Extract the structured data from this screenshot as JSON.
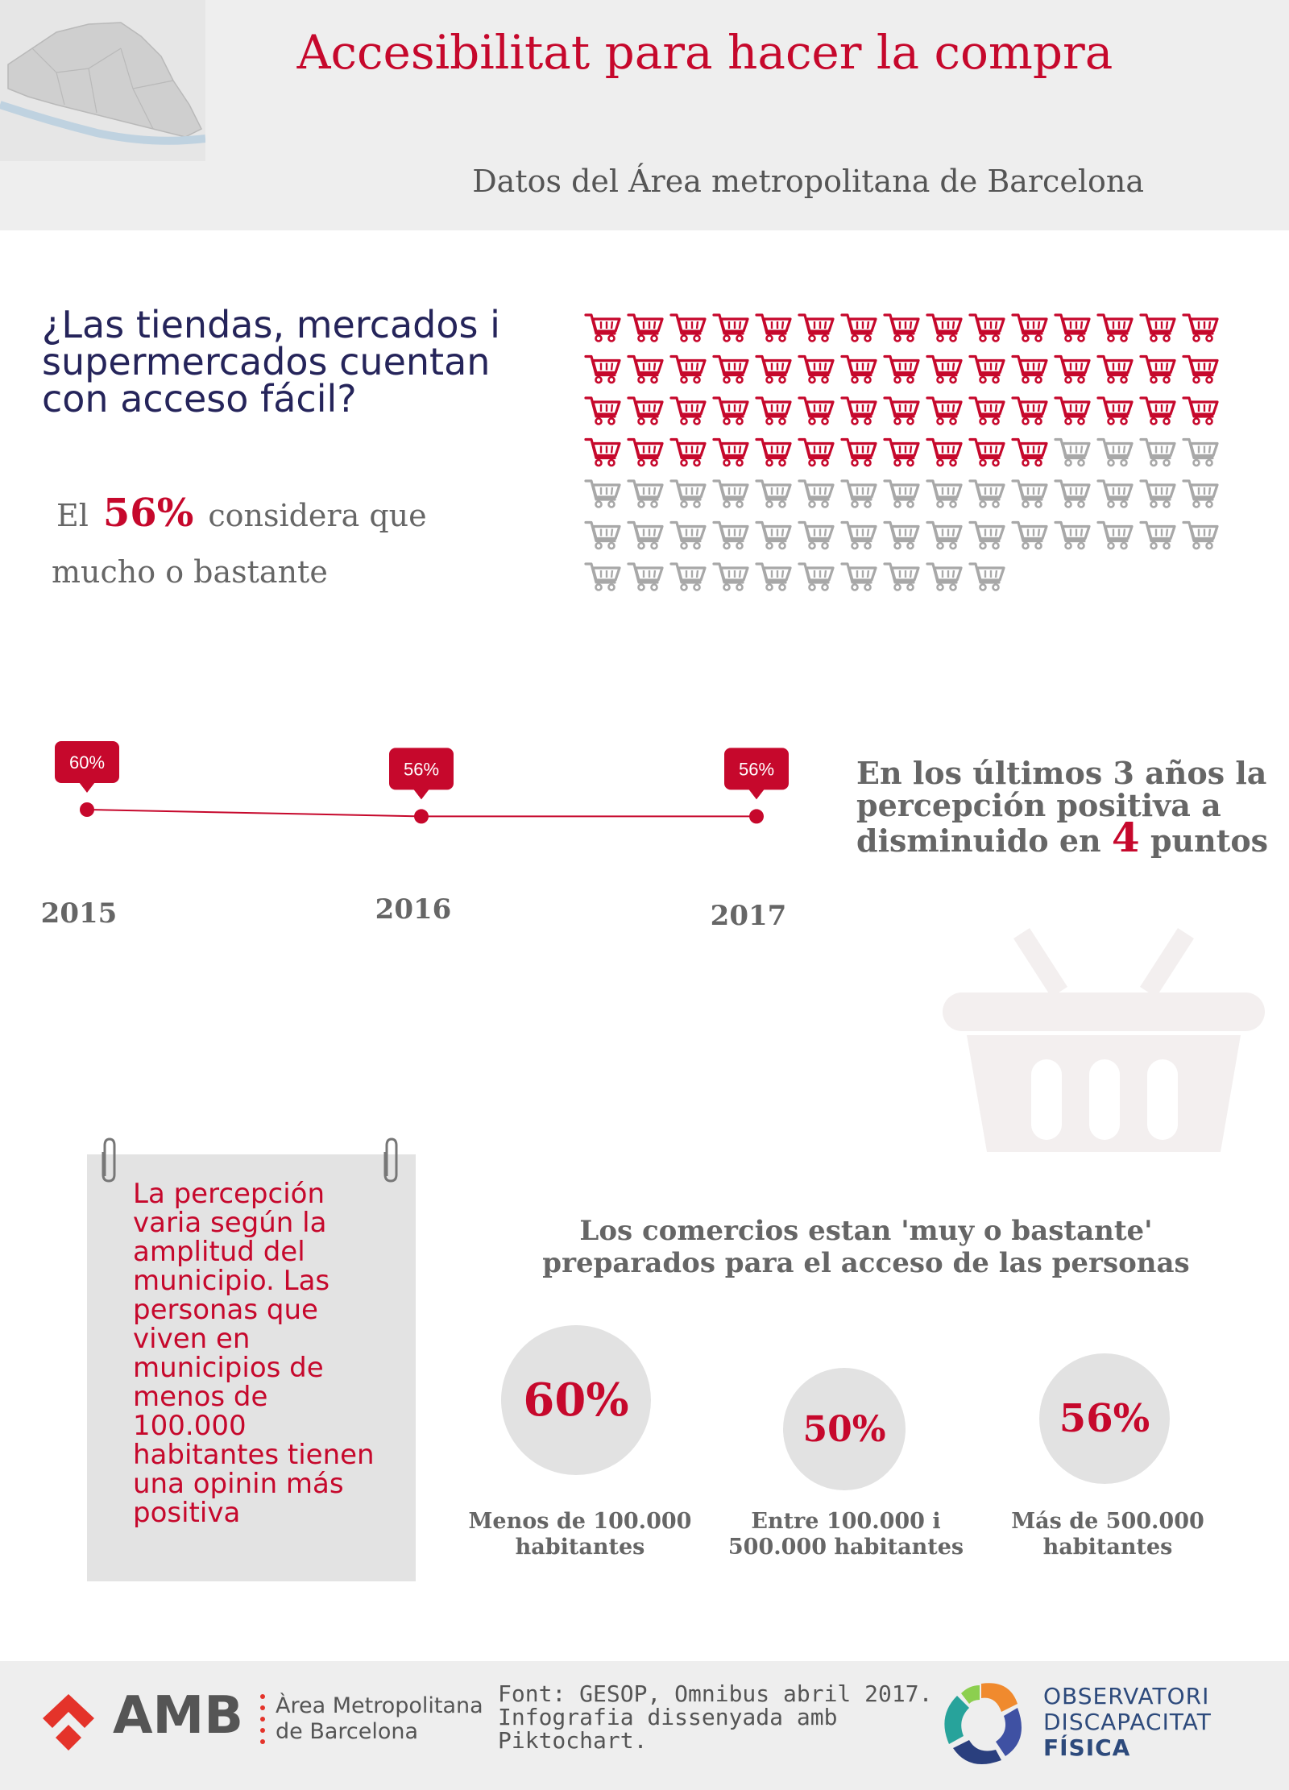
{
  "header": {
    "title": "Accesibilitat para hacer la compra",
    "subtitle": "Datos del Área metropolitana de Barcelona"
  },
  "question": {
    "text": "¿Las tiendas, mercados i supermercados cuentan con acceso fácil?",
    "stat_prefix": "El",
    "stat_value": "56%",
    "stat_suffix": "considera que",
    "stat_line2": "mucho o bastante",
    "cart_total": 100,
    "cart_highlighted": 56,
    "colors": {
      "highlight": "#c6082c",
      "rest": "#a8a8a8"
    }
  },
  "timeline": {
    "points": [
      {
        "year": "2015",
        "label": "60%",
        "value": 60
      },
      {
        "year": "2016",
        "label": "56%",
        "value": 56
      },
      {
        "year": "2017",
        "label": "56%",
        "value": 56
      }
    ],
    "trend_line1": "En los últimos 3 años la",
    "trend_line2": "percepción positiva a",
    "trend_line3_pre": "disminuido en",
    "trend_number": "4",
    "trend_line3_post": "puntos"
  },
  "note": {
    "text": "La percepción varia según la amplitud del municipio. Las personas que viven en municipios de menos de 100.000 habitantes tienen una opinin más positiva"
  },
  "bubbles": {
    "title": "Los comercios estan 'muy o bastante' preparados para el acceso de las personas",
    "items": [
      {
        "value": "60%",
        "label_l1": "Menos de 100.000",
        "label_l2": "habitantes"
      },
      {
        "value": "50%",
        "label_l1": "Entre 100.000 i",
        "label_l2": "500.000 habitantes"
      },
      {
        "value": "56%",
        "label_l1": "Más de 500.000",
        "label_l2": "habitantes"
      }
    ]
  },
  "footer": {
    "amb_acronym": "AMB",
    "amb_name": "Àrea Metropolitana\nde Barcelona",
    "source": "Font: GESOP, Omnibus abril 2017. Infografia dissenyada amb Piktochart.",
    "obs_line1": "OBSERVATORI",
    "obs_line2": "DISCAPACITAT",
    "obs_line3": "FÍSICA"
  }
}
